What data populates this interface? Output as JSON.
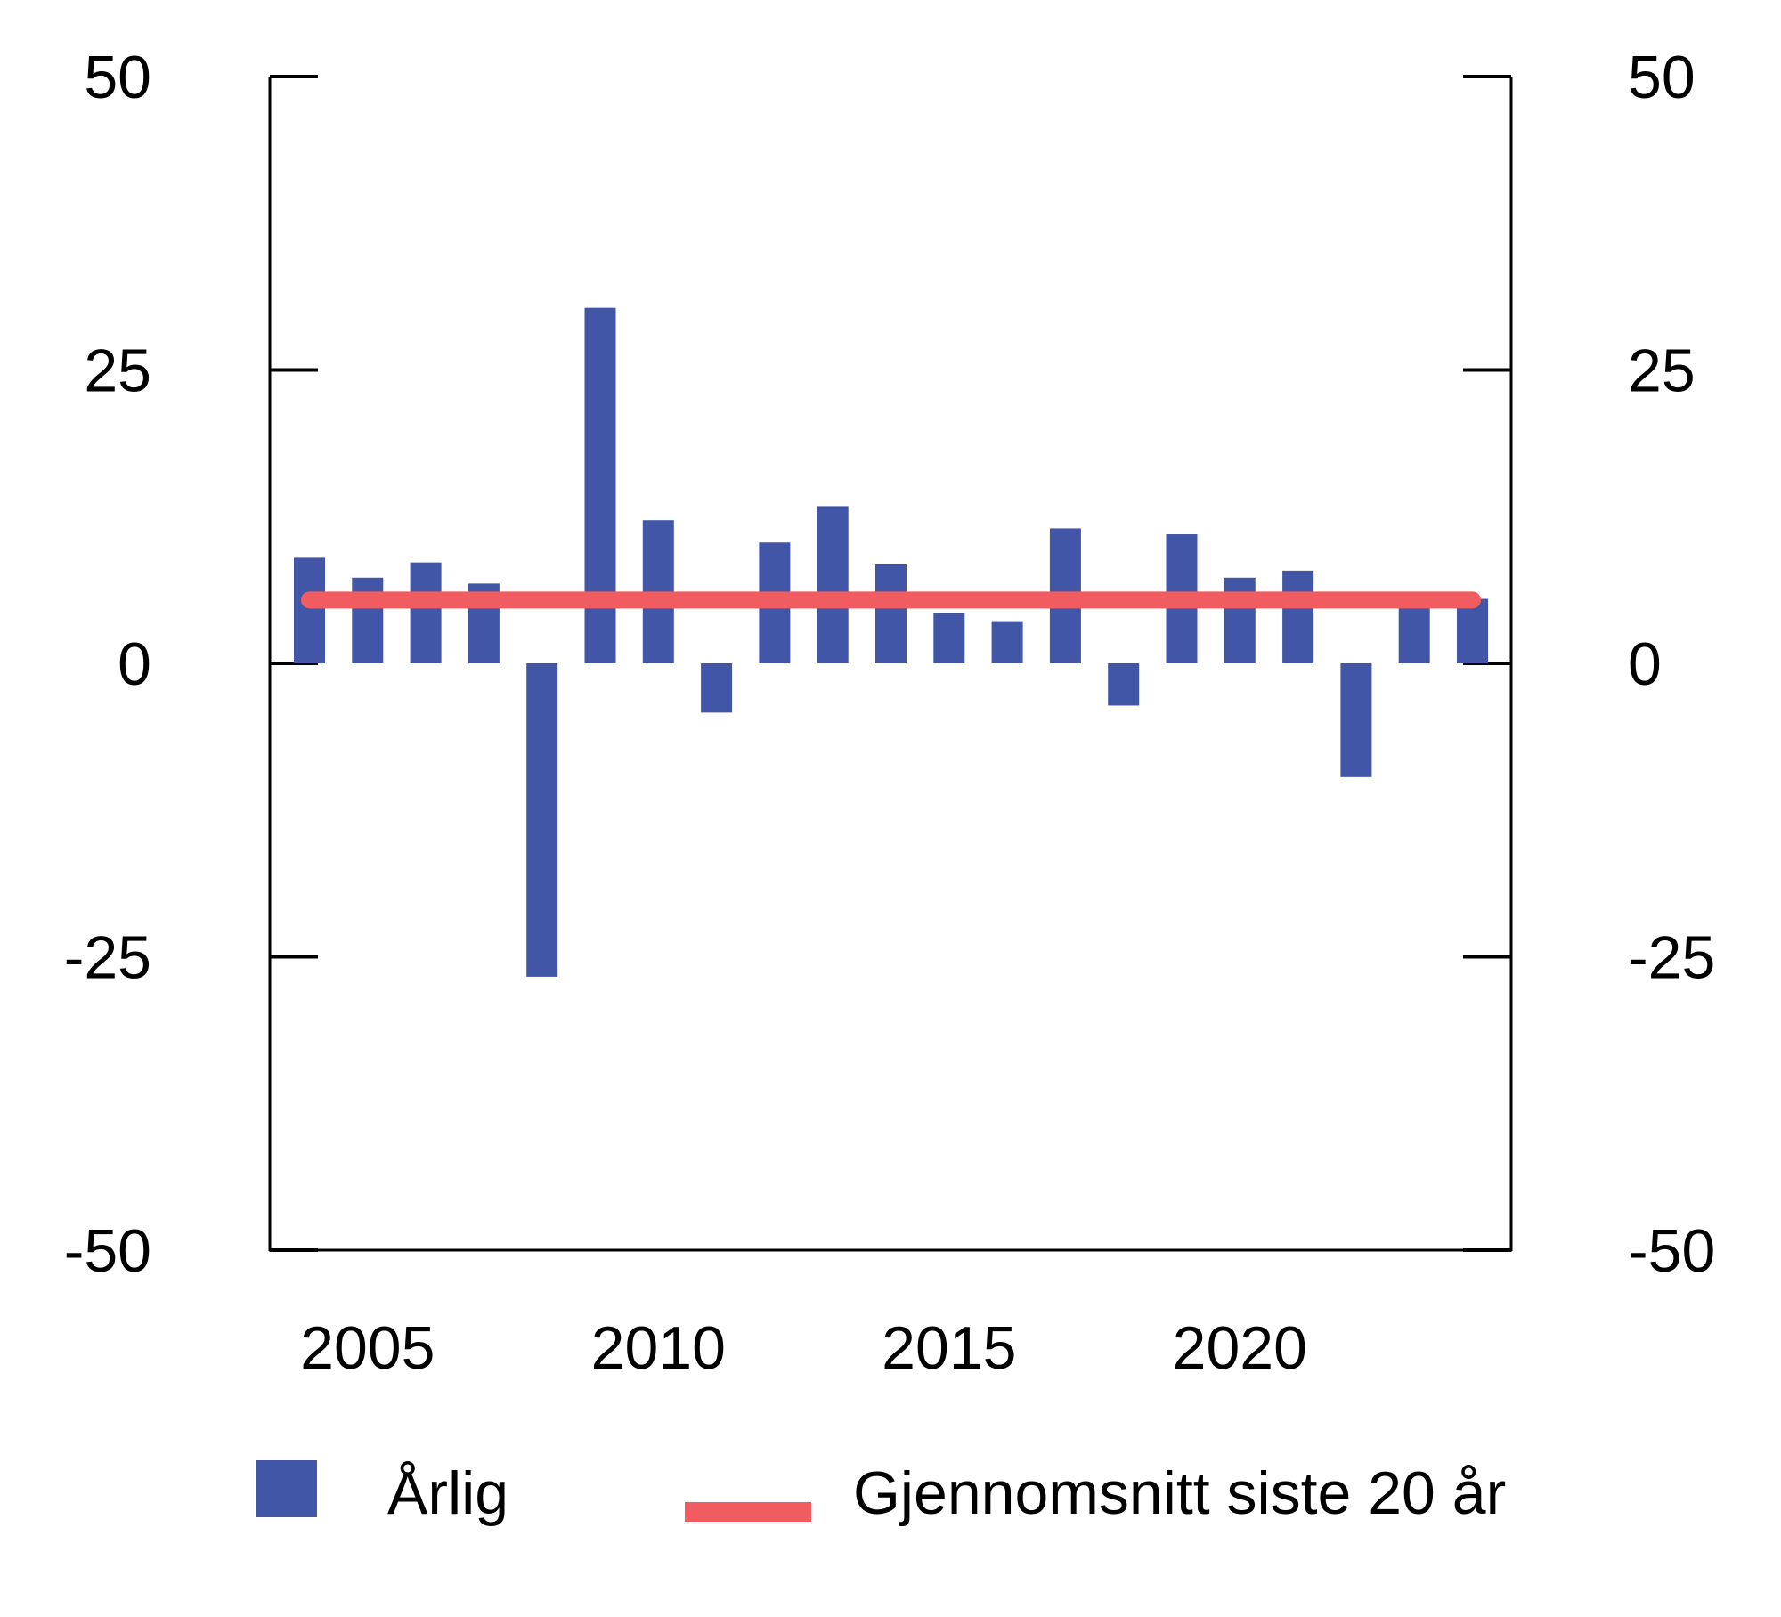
{
  "colors": {
    "bar": "#4156A6",
    "average_line": "#F15C61",
    "axis": "#000000",
    "background": "#FFFFFF"
  },
  "legend": {
    "items": [
      {
        "label": "Årlig",
        "swatch": "square",
        "color": "#4156A6"
      },
      {
        "label": "Gjennomsnitt siste 20 år",
        "swatch": "line",
        "color": "#F15C61"
      }
    ]
  },
  "chart_data": {
    "type": "bar",
    "title": "",
    "xlabel": "",
    "ylabel": "",
    "categories": [
      2004,
      2005,
      2006,
      2007,
      2008,
      2009,
      2010,
      2011,
      2012,
      2013,
      2014,
      2015,
      2016,
      2017,
      2018,
      2019,
      2020,
      2021,
      2022,
      2023,
      2024
    ],
    "series": [
      {
        "name": "Årlig",
        "kind": "bar",
        "color": "#4156A6",
        "values": [
          9.0,
          7.3,
          8.6,
          6.8,
          -26.7,
          30.3,
          12.2,
          -4.2,
          10.3,
          13.4,
          8.5,
          4.3,
          3.6,
          11.5,
          -3.6,
          11.0,
          7.3,
          7.9,
          -9.7,
          5.0,
          5.5
        ]
      },
      {
        "name": "Gjennomsnitt siste 20 år",
        "kind": "line",
        "color": "#F15C61",
        "constant_value": 5.4,
        "x_span": [
          2004,
          2024
        ]
      }
    ],
    "ylim": [
      -50,
      50
    ],
    "yticks": [
      50,
      25,
      0,
      -25,
      -50
    ],
    "ytick_labels": [
      "50",
      "25",
      "0",
      "-25",
      "-50"
    ],
    "dual_y_axis": true,
    "xticks": [
      {
        "value": 2005,
        "label": "2005"
      },
      {
        "value": 2010,
        "label": "2010"
      },
      {
        "value": 2015,
        "label": "2015"
      },
      {
        "value": 2020,
        "label": "2020"
      }
    ],
    "grid": false,
    "legend_position": "bottom"
  }
}
